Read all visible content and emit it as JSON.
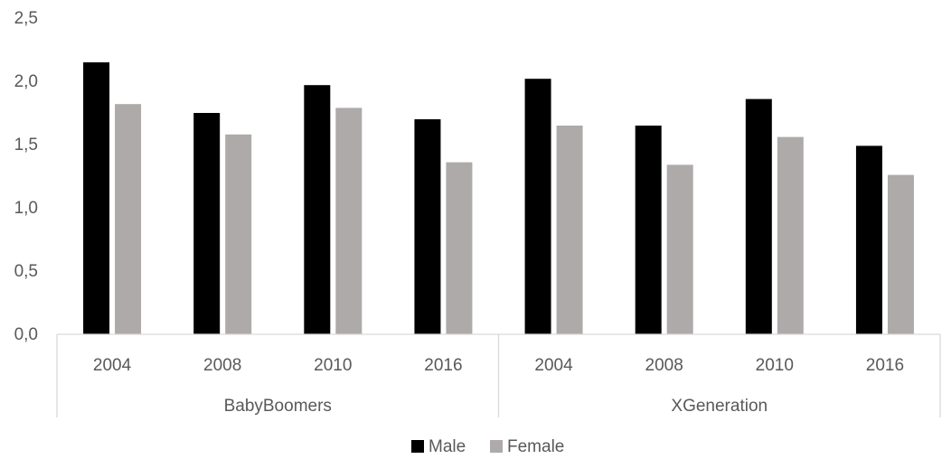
{
  "chart_data": {
    "type": "bar",
    "groups": [
      "BabyBoomers",
      "XGeneration"
    ],
    "categories": [
      "2004",
      "2008",
      "2010",
      "2016"
    ],
    "series": [
      {
        "name": "Male",
        "color": "#000000",
        "values": [
          [
            2.15,
            1.75,
            1.97,
            1.7
          ],
          [
            2.02,
            1.65,
            1.86,
            1.49
          ]
        ]
      },
      {
        "name": "Female",
        "color": "#aeaaaa",
        "values": [
          [
            1.82,
            1.58,
            1.79,
            1.36
          ],
          [
            1.65,
            1.34,
            1.56,
            1.26
          ]
        ]
      }
    ],
    "ylim": [
      0,
      2.5
    ],
    "yticks": [
      "0,0",
      "0,5",
      "1,0",
      "1,5",
      "2,0",
      "2,5"
    ],
    "ytick_values": [
      0,
      0.5,
      1.0,
      1.5,
      2.0,
      2.5
    ],
    "grid": false,
    "legend_position": "bottom",
    "title": "",
    "xlabel": "",
    "ylabel": ""
  }
}
